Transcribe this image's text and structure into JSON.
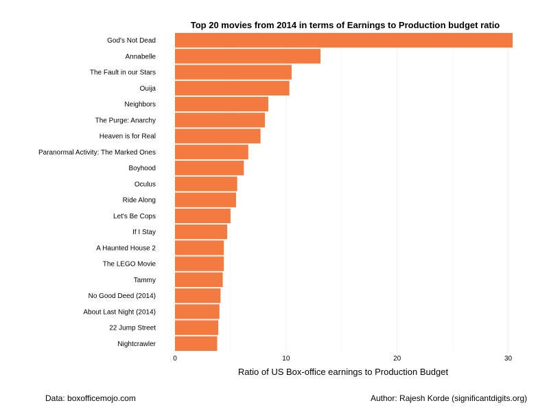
{
  "chart_data": {
    "type": "bar",
    "orientation": "horizontal",
    "title": "Top 20 movies from 2014 in terms of Earnings to Production budget ratio",
    "xlabel": "Ratio of US Box-office earnings to Production Budget",
    "ylabel": "",
    "xlim": [
      0,
      30.4
    ],
    "xticks": [
      0,
      10,
      20,
      30
    ],
    "grid": true,
    "bar_color": "#F47B3F",
    "categories": [
      "God's Not Dead",
      "Annabelle",
      "The Fault in our Stars",
      "Ouija",
      "Neighbors",
      "The Purge: Anarchy",
      "Heaven is for Real",
      "Paranormal Activity: The Marked Ones",
      "Boyhood",
      "Oculus",
      "Ride Along",
      "Let's Be Cops",
      "If I Stay",
      "A Haunted House 2",
      "The LEGO Movie",
      "Tammy",
      "No Good Deed (2014)",
      "About Last Night (2014)",
      "22 Jump Street",
      "Nightcrawler"
    ],
    "values": [
      30.4,
      13.1,
      10.5,
      10.3,
      8.4,
      8.1,
      7.7,
      6.6,
      6.2,
      5.6,
      5.5,
      5.0,
      4.7,
      4.4,
      4.4,
      4.3,
      4.1,
      4.0,
      3.9,
      3.8
    ]
  },
  "footer": {
    "source": "Data: boxofficemojo.com",
    "author": "Author: Rajesh Korde (significantdigits.org)"
  }
}
